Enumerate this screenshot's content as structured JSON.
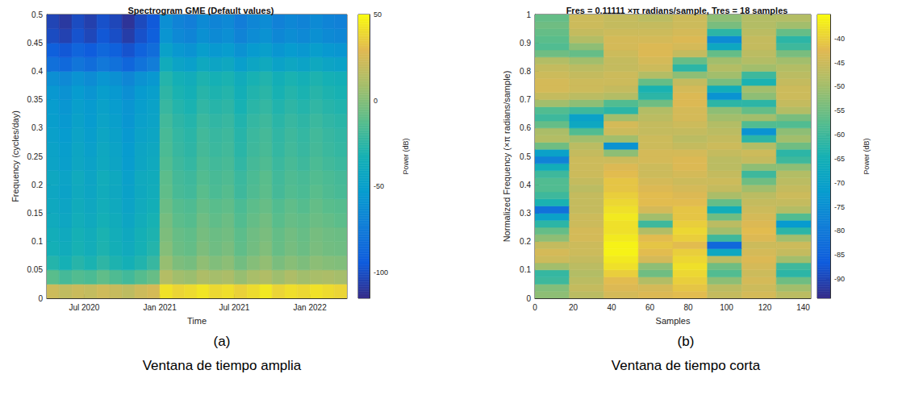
{
  "chart_data": [
    {
      "type": "heatmap",
      "title": "Spectrogram GME (Default values)",
      "x_label": "Time",
      "y_label": "Frequency (cycles/day)",
      "x_bins": [
        "2020-04",
        "2020-05",
        "2020-06",
        "2020-07",
        "2020-08",
        "2020-09",
        "2020-10",
        "2020-11",
        "2020-12",
        "2021-01",
        "2021-02",
        "2021-03",
        "2021-04",
        "2021-05",
        "2021-06",
        "2021-07",
        "2021-08",
        "2021-09",
        "2021-10",
        "2021-11",
        "2021-12",
        "2022-01",
        "2022-02",
        "2022-03",
        "2022-04"
      ],
      "y_bins": [
        0,
        0.025,
        0.05,
        0.075,
        0.1,
        0.125,
        0.15,
        0.175,
        0.2,
        0.225,
        0.25,
        0.275,
        0.3,
        0.325,
        0.35,
        0.375,
        0.4,
        0.425,
        0.45,
        0.475,
        0.5
      ],
      "cells": [
        [
          22,
          18,
          21,
          19,
          23,
          20,
          17,
          22,
          25,
          42,
          38,
          40,
          43,
          39,
          41,
          37,
          40,
          44,
          38,
          41,
          39,
          42,
          40,
          38
        ],
        [
          -12,
          -18,
          -14,
          -16,
          -10,
          -15,
          -19,
          -13,
          -8,
          14,
          8,
          6,
          12,
          9,
          11,
          5,
          10,
          13,
          7,
          12,
          8,
          10,
          11,
          9
        ],
        [
          -28,
          -33,
          -27,
          -31,
          -25,
          -30,
          -34,
          -29,
          -22,
          5,
          -2,
          -4,
          3,
          -1,
          2,
          -5,
          0,
          4,
          -3,
          1,
          -2,
          2,
          0,
          -1
        ],
        [
          -34,
          -38,
          -32,
          -36,
          -30,
          -35,
          -39,
          -33,
          -28,
          0,
          -7,
          -9,
          -2,
          -6,
          -3,
          -10,
          -5,
          -1,
          -8,
          -4,
          -7,
          -3,
          -5,
          -6
        ],
        [
          -36,
          -40,
          -33,
          -37,
          -31,
          -36,
          -41,
          -34,
          -30,
          -2,
          -8,
          -10,
          -4,
          -7,
          -5,
          -11,
          -6,
          -3,
          -9,
          -5,
          -8,
          -4,
          -6,
          -7
        ],
        [
          -39,
          -43,
          -36,
          -40,
          -34,
          -38,
          -44,
          -37,
          -32,
          -4,
          -11,
          -13,
          -6,
          -10,
          -7,
          -14,
          -9,
          -5,
          -12,
          -8,
          -10,
          -7,
          -9,
          -11
        ],
        [
          -41,
          -45,
          -38,
          -42,
          -36,
          -40,
          -46,
          -39,
          -35,
          -7,
          -13,
          -15,
          -9,
          -12,
          -10,
          -16,
          -11,
          -8,
          -14,
          -10,
          -13,
          -9,
          -12,
          -13
        ],
        [
          -43,
          -47,
          -40,
          -44,
          -38,
          -42,
          -48,
          -41,
          -37,
          -10,
          -17,
          -19,
          -12,
          -16,
          -13,
          -20,
          -15,
          -11,
          -18,
          -14,
          -16,
          -12,
          -15,
          -17
        ],
        [
          -42,
          -46,
          -39,
          -45,
          -37,
          -41,
          -49,
          -40,
          -38,
          -11,
          -18,
          -20,
          -14,
          -17,
          -15,
          -21,
          -16,
          -12,
          -19,
          -15,
          -17,
          -14,
          -16,
          -18
        ],
        [
          -46,
          -50,
          -43,
          -47,
          -41,
          -45,
          -52,
          -44,
          -40,
          -14,
          -20,
          -23,
          -16,
          -19,
          -17,
          -24,
          -18,
          -15,
          -21,
          -17,
          -20,
          -16,
          -19,
          -21
        ],
        [
          -47,
          -51,
          -44,
          -49,
          -42,
          -46,
          -53,
          -45,
          -42,
          -16,
          -22,
          -25,
          -18,
          -21,
          -19,
          -26,
          -20,
          -17,
          -23,
          -19,
          -22,
          -18,
          -21,
          -23
        ],
        [
          -49,
          -53,
          -46,
          -51,
          -44,
          -48,
          -55,
          -47,
          -44,
          -17,
          -23,
          -26,
          -19,
          -22,
          -20,
          -27,
          -21,
          -18,
          -24,
          -20,
          -23,
          -19,
          -22,
          -24
        ],
        [
          -51,
          -55,
          -48,
          -53,
          -46,
          -50,
          -57,
          -49,
          -46,
          -19,
          -25,
          -28,
          -21,
          -24,
          -22,
          -29,
          -23,
          -20,
          -26,
          -22,
          -25,
          -21,
          -24,
          -26
        ],
        [
          -52,
          -57,
          -50,
          -54,
          -48,
          -52,
          -58,
          -51,
          -47,
          -22,
          -28,
          -31,
          -24,
          -27,
          -25,
          -32,
          -26,
          -23,
          -29,
          -25,
          -28,
          -24,
          -27,
          -29
        ],
        [
          -56,
          -60,
          -53,
          -58,
          -51,
          -55,
          -62,
          -54,
          -50,
          -25,
          -31,
          -34,
          -27,
          -30,
          -28,
          -35,
          -29,
          -26,
          -32,
          -28,
          -31,
          -27,
          -30,
          -32
        ],
        [
          -62,
          -66,
          -59,
          -64,
          -57,
          -61,
          -68,
          -60,
          -56,
          -28,
          -34,
          -37,
          -30,
          -33,
          -31,
          -38,
          -32,
          -29,
          -35,
          -31,
          -34,
          -30,
          -33,
          -35
        ],
        [
          -82,
          -86,
          -79,
          -84,
          -77,
          -81,
          -88,
          -80,
          -74,
          -38,
          -46,
          -49,
          -41,
          -45,
          -42,
          -50,
          -44,
          -40,
          -47,
          -43,
          -46,
          -41,
          -45,
          -47
        ],
        [
          -92,
          -96,
          -89,
          -94,
          -87,
          -91,
          -98,
          -90,
          -84,
          -48,
          -56,
          -59,
          -51,
          -55,
          -52,
          -60,
          -54,
          -50,
          -57,
          -53,
          -56,
          -51,
          -55,
          -57
        ],
        [
          -101,
          -105,
          -98,
          -103,
          -96,
          -100,
          -107,
          -99,
          -92,
          -58,
          -66,
          -69,
          -61,
          -65,
          -62,
          -70,
          -64,
          -60,
          -67,
          -63,
          -66,
          -61,
          -65,
          -67
        ],
        [
          -104,
          -109,
          -101,
          -106,
          -99,
          -103,
          -111,
          -102,
          -95,
          -62,
          -70,
          -73,
          -65,
          -69,
          -66,
          -74,
          -68,
          -64,
          -71,
          -67,
          -70,
          -65,
          -69,
          -71
        ]
      ],
      "xlim": [
        "2020-04",
        "2022-04"
      ],
      "xticks": [
        {
          "value": "2020-07",
          "label": "Jul 2020"
        },
        {
          "value": "2021-01",
          "label": "Jan 2021"
        },
        {
          "value": "2021-07",
          "label": "Jul 2021"
        },
        {
          "value": "2022-01",
          "label": "Jan 2022"
        }
      ],
      "ylim": [
        0,
        0.5
      ],
      "yticks": [
        0,
        0.05,
        0.1,
        0.15,
        0.2,
        0.25,
        0.3,
        0.35,
        0.4,
        0.45,
        0.5
      ],
      "colorbar": {
        "label": "Power (dB)",
        "range": [
          -115,
          50
        ],
        "ticks": [
          -100,
          -50,
          0,
          50
        ]
      },
      "caption_letter": "(a)",
      "caption": "Ventana de tiempo amplia"
    },
    {
      "type": "heatmap",
      "title": "Fres = 0.11111 ×π radians/sample, Tres = 18 samples",
      "x_label": "Samples",
      "y_label": "Normalized Frequency (×π radians/sample)",
      "x_bins": [
        0,
        18,
        36,
        54,
        72,
        90,
        108,
        126,
        144
      ],
      "y_bins": [
        0,
        0.025,
        0.05,
        0.075,
        0.1,
        0.125,
        0.15,
        0.175,
        0.2,
        0.225,
        0.25,
        0.275,
        0.3,
        0.325,
        0.35,
        0.375,
        0.4,
        0.425,
        0.45,
        0.475,
        0.5,
        0.525,
        0.55,
        0.575,
        0.6,
        0.625,
        0.65,
        0.675,
        0.7,
        0.725,
        0.75,
        0.775,
        0.8,
        0.825,
        0.85,
        0.875,
        0.9,
        0.925,
        0.95,
        0.975,
        1
      ],
      "cells": [
        [
          -52,
          -47,
          -44,
          -43,
          -42,
          -46,
          -44,
          -47
        ],
        [
          -53,
          -46,
          -43,
          -44,
          -41,
          -47,
          -45,
          -50
        ],
        [
          -60,
          -47,
          -42,
          -48,
          -40,
          -52,
          -44,
          -55
        ],
        [
          -61,
          -48,
          -40,
          -55,
          -39,
          -58,
          -45,
          -62
        ],
        [
          -50,
          -47,
          -38,
          -52,
          -38,
          -55,
          -44,
          -60
        ],
        [
          -45,
          -46,
          -37,
          -44,
          -39,
          -47,
          -43,
          -50
        ],
        [
          -44,
          -45,
          -36,
          -42,
          -40,
          -68,
          -44,
          -46
        ],
        [
          -46,
          -45,
          -36,
          -41,
          -42,
          -84,
          -45,
          -45
        ],
        [
          -52,
          -44,
          -37,
          -42,
          -40,
          -60,
          -43,
          -50
        ],
        [
          -56,
          -44,
          -38,
          -48,
          -39,
          -50,
          -42,
          -62
        ],
        [
          -62,
          -45,
          -38,
          -60,
          -40,
          -47,
          -43,
          -72
        ],
        [
          -70,
          -45,
          -37,
          -50,
          -41,
          -55,
          -44,
          -58
        ],
        [
          -82,
          -46,
          -38,
          -44,
          -41,
          -66,
          -45,
          -48
        ],
        [
          -64,
          -46,
          -39,
          -42,
          -42,
          -56,
          -46,
          -46
        ],
        [
          -60,
          -46,
          -40,
          -42,
          -43,
          -49,
          -47,
          -45
        ],
        [
          -58,
          -47,
          -41,
          -43,
          -44,
          -46,
          -50,
          -46
        ],
        [
          -58,
          -46,
          -41,
          -44,
          -45,
          -45,
          -55,
          -47
        ],
        [
          -60,
          -45,
          -42,
          -45,
          -44,
          -46,
          -60,
          -48
        ],
        [
          -66,
          -45,
          -43,
          -45,
          -43,
          -47,
          -52,
          -52
        ],
        [
          -78,
          -45,
          -45,
          -44,
          -43,
          -47,
          -46,
          -60
        ],
        [
          -70,
          -46,
          -52,
          -44,
          -44,
          -46,
          -45,
          -62
        ],
        [
          -55,
          -47,
          -74,
          -45,
          -46,
          -45,
          -48,
          -55
        ],
        [
          -48,
          -50,
          -50,
          -45,
          -47,
          -46,
          -62,
          -50
        ],
        [
          -49,
          -58,
          -45,
          -46,
          -46,
          -47,
          -74,
          -52
        ],
        [
          -56,
          -68,
          -44,
          -46,
          -45,
          -48,
          -58,
          -58
        ],
        [
          -60,
          -70,
          -50,
          -47,
          -44,
          -50,
          -50,
          -54
        ],
        [
          -58,
          -60,
          -62,
          -48,
          -44,
          -52,
          -56,
          -48
        ],
        [
          -50,
          -52,
          -58,
          -55,
          -43,
          -62,
          -62,
          -46
        ],
        [
          -46,
          -47,
          -48,
          -62,
          -43,
          -74,
          -52,
          -45
        ],
        [
          -44,
          -45,
          -46,
          -64,
          -44,
          -66,
          -50,
          -45
        ],
        [
          -44,
          -45,
          -45,
          -56,
          -46,
          -54,
          -64,
          -46
        ],
        [
          -45,
          -46,
          -45,
          -48,
          -52,
          -50,
          -60,
          -47
        ],
        [
          -46,
          -47,
          -46,
          -45,
          -62,
          -48,
          -50,
          -48
        ],
        [
          -48,
          -50,
          -46,
          -44,
          -56,
          -50,
          -48,
          -50
        ],
        [
          -55,
          -56,
          -45,
          -43,
          -46,
          -56,
          -47,
          -54
        ],
        [
          -58,
          -52,
          -44,
          -43,
          -44,
          -68,
          -46,
          -60
        ],
        [
          -57,
          -48,
          -44,
          -44,
          -43,
          -76,
          -46,
          -62
        ],
        [
          -56,
          -46,
          -45,
          -45,
          -44,
          -62,
          -47,
          -56
        ],
        [
          -55,
          -45,
          -46,
          -46,
          -45,
          -54,
          -48,
          -50
        ],
        [
          -56,
          -45,
          -46,
          -47,
          -45,
          -52,
          -48,
          -48
        ]
      ],
      "xlim": [
        0,
        144
      ],
      "xticks": [
        0,
        20,
        40,
        60,
        80,
        100,
        120,
        140
      ],
      "ylim": [
        0,
        1
      ],
      "yticks": [
        0,
        0.1,
        0.2,
        0.3,
        0.4,
        0.5,
        0.6,
        0.7,
        0.8,
        0.9,
        1
      ],
      "colorbar": {
        "label": "Power (dB)",
        "range": [
          -94,
          -35
        ],
        "ticks": [
          -90,
          -85,
          -80,
          -75,
          -70,
          -65,
          -60,
          -55,
          -50,
          -45,
          -40
        ]
      },
      "caption_letter": "(b)",
      "caption": "Ventana de tiempo corta"
    }
  ]
}
